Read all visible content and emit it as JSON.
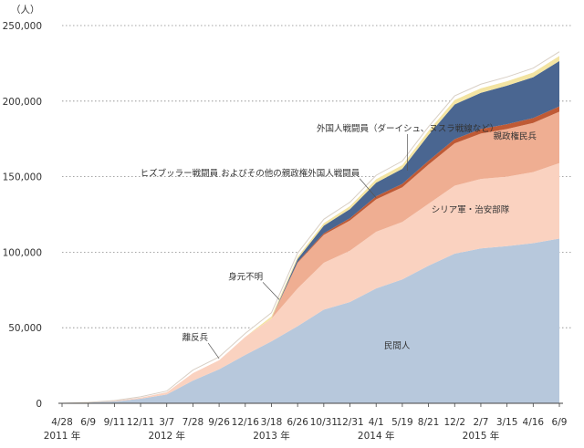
{
  "chart_data": {
    "type": "area",
    "stacked": true,
    "y_unit": "（人）",
    "ylim": [
      0,
      250000
    ],
    "yticks": [
      0,
      50000,
      100000,
      150000,
      200000,
      250000
    ],
    "ytick_labels": [
      "0",
      "50,000",
      "100,000",
      "150,000",
      "200,000",
      "250,000"
    ],
    "grid": "horizontal-dotted",
    "x": [
      "4/28",
      "6/9",
      "9/11",
      "12/11",
      "3/7",
      "7/28",
      "9/26",
      "12/16",
      "3/18",
      "6/26",
      "10/31",
      "12/31",
      "4/1",
      "5/19",
      "8/21",
      "12/2",
      "2/7",
      "3/15",
      "4/16",
      "6/9"
    ],
    "year_labels": [
      {
        "index": 0,
        "label": "2011 年"
      },
      {
        "index": 4,
        "label": "2012 年"
      },
      {
        "index": 8,
        "label": "2013 年"
      },
      {
        "index": 12,
        "label": "2014 年"
      },
      {
        "index": 16,
        "label": "2015 年"
      }
    ],
    "series": [
      {
        "name": "民間人",
        "color": "#b7c8dc",
        "values": [
          0,
          500,
          1200,
          3000,
          5800,
          15000,
          22500,
          32000,
          41000,
          51000,
          62000,
          67000,
          76000,
          82000,
          91000,
          99000,
          102500,
          104000,
          106000,
          109000
        ]
      },
      {
        "name": "シリア軍・治安部隊",
        "color": "#fad2c0",
        "values": [
          0,
          100,
          400,
          800,
          1500,
          5000,
          6000,
          12000,
          15000,
          25000,
          31000,
          34000,
          37500,
          38000,
          41000,
          45000,
          46000,
          46000,
          47000,
          50000
        ]
      },
      {
        "name": "親政権民兵",
        "color": "#efae92",
        "values": [
          0,
          0,
          0,
          0,
          0,
          0,
          0,
          0,
          0,
          17000,
          18500,
          20000,
          21500,
          23000,
          26000,
          28000,
          30000,
          31500,
          32500,
          34000
        ]
      },
      {
        "name": "ヒズブッラー戦闘員 およびその他の親政権外国人戦闘員",
        "color": "#bf5a35",
        "values": [
          0,
          0,
          0,
          0,
          0,
          0,
          0,
          0,
          0,
          500,
          1000,
          1500,
          2000,
          2200,
          2500,
          2800,
          3000,
          3200,
          3300,
          3500
        ]
      },
      {
        "name": "外国人戦闘員（ダーイシュ、ヌスラ戦線など）",
        "color": "#4a6691",
        "values": [
          0,
          0,
          0,
          0,
          0,
          0,
          0,
          0,
          0,
          2000,
          5000,
          6000,
          9000,
          10000,
          17000,
          23000,
          24000,
          25500,
          27000,
          30000
        ]
      },
      {
        "name": "身元不明",
        "color": "#f3e4a2",
        "values": [
          0,
          0,
          0,
          0,
          0,
          0,
          0,
          0,
          1500,
          1500,
          1800,
          2000,
          2300,
          2500,
          2800,
          3000,
          3000,
          3000,
          3200,
          3400
        ]
      },
      {
        "name": "離反兵",
        "color": "#ffffff",
        "values": [
          0,
          0,
          200,
          500,
          800,
          2000,
          2200,
          2300,
          2400,
          2400,
          2500,
          2600,
          2600,
          2600,
          2700,
          2700,
          2700,
          2800,
          2800,
          2800
        ]
      }
    ],
    "annotations": [
      {
        "series_index": 0,
        "text": "民間人"
      },
      {
        "series_index": 1,
        "text": "シリア軍・治安部隊"
      },
      {
        "series_index": 2,
        "text": "親政権民兵"
      },
      {
        "series_index": 3,
        "text": "ヒズブッラー戦闘員 およびその他の親政権外国人戦闘員"
      },
      {
        "series_index": 4,
        "text": "外国人戦闘員（ダーイシュ、ヌスラ戦線など）"
      },
      {
        "series_index": 5,
        "text": "身元不明"
      },
      {
        "series_index": 6,
        "text": "離反兵"
      }
    ]
  }
}
